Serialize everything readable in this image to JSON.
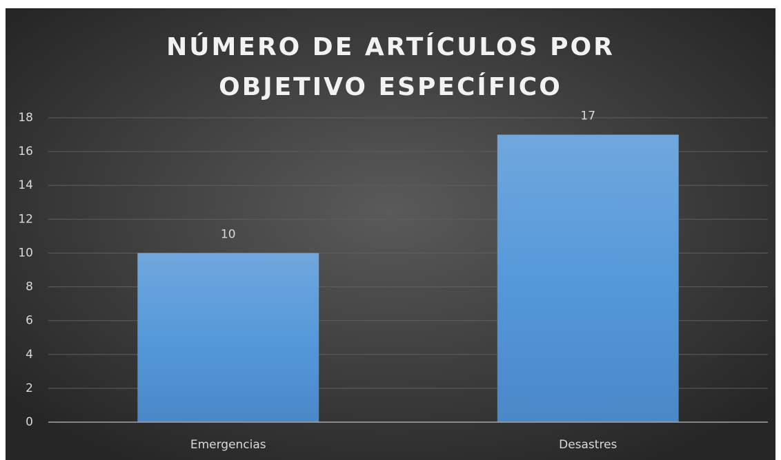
{
  "chart_data": {
    "type": "bar",
    "title": "NÚMERO DE ARTÍCULOS POR OBJETIVO ESPECÍFICO",
    "categories": [
      "Emergencias",
      "Desastres"
    ],
    "values": [
      10,
      17
    ],
    "color": "#5b9bd5",
    "ylim": [
      0,
      18
    ],
    "yticks": [
      0,
      2,
      4,
      6,
      8,
      10,
      12,
      14,
      16,
      18
    ],
    "grid": true
  }
}
